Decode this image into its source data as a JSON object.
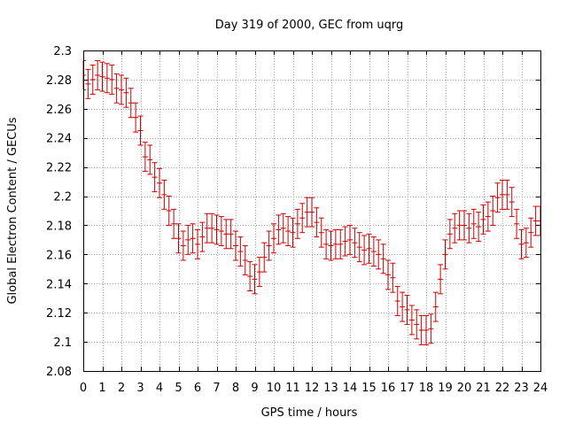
{
  "chart_data": {
    "type": "scatter",
    "title": "Day 319 of 2000, GEC from uqrg",
    "xlabel": "GPS time / hours",
    "ylabel": "Global Electron Content / GECUs",
    "xlim": [
      0,
      24
    ],
    "ylim": [
      2.08,
      2.3
    ],
    "xticks": [
      0,
      1,
      2,
      3,
      4,
      5,
      6,
      7,
      8,
      9,
      10,
      11,
      12,
      13,
      14,
      15,
      16,
      17,
      18,
      19,
      20,
      21,
      22,
      23,
      24
    ],
    "yticks": [
      2.08,
      2.1,
      2.12,
      2.14,
      2.16,
      2.18,
      2.2,
      2.22,
      2.24,
      2.26,
      2.28,
      2.3
    ],
    "grid": true,
    "series_color": "#cc0000",
    "error": 0.01,
    "x": [
      0.0,
      0.25,
      0.5,
      0.75,
      1.0,
      1.25,
      1.5,
      1.75,
      2.0,
      2.25,
      2.5,
      2.75,
      3.0,
      3.25,
      3.5,
      3.75,
      4.0,
      4.25,
      4.5,
      4.75,
      5.0,
      5.25,
      5.5,
      5.75,
      6.0,
      6.25,
      6.5,
      6.75,
      7.0,
      7.25,
      7.5,
      7.75,
      8.0,
      8.25,
      8.5,
      8.75,
      9.0,
      9.25,
      9.5,
      9.75,
      10.0,
      10.25,
      10.5,
      10.75,
      11.0,
      11.25,
      11.5,
      11.75,
      12.0,
      12.25,
      12.5,
      12.75,
      13.0,
      13.25,
      13.5,
      13.75,
      14.0,
      14.25,
      14.5,
      14.75,
      15.0,
      15.25,
      15.5,
      15.75,
      16.0,
      16.25,
      16.5,
      16.75,
      17.0,
      17.25,
      17.5,
      17.75,
      18.0,
      18.25,
      18.5,
      18.75,
      19.0,
      19.25,
      19.5,
      19.75,
      20.0,
      20.25,
      20.5,
      20.75,
      21.0,
      21.25,
      21.5,
      21.75,
      22.0,
      22.25,
      22.5,
      22.75,
      23.0,
      23.25,
      23.5,
      23.75,
      24.0
    ],
    "y": [
      2.283,
      2.277,
      2.28,
      2.283,
      2.282,
      2.281,
      2.28,
      2.274,
      2.273,
      2.271,
      2.264,
      2.254,
      2.245,
      2.227,
      2.225,
      2.213,
      2.209,
      2.201,
      2.19,
      2.181,
      2.171,
      2.166,
      2.17,
      2.171,
      2.167,
      2.172,
      2.178,
      2.178,
      2.177,
      2.176,
      2.174,
      2.174,
      2.166,
      2.162,
      2.156,
      2.145,
      2.143,
      2.148,
      2.158,
      2.166,
      2.171,
      2.177,
      2.178,
      2.176,
      2.175,
      2.181,
      2.185,
      2.189,
      2.189,
      2.182,
      2.175,
      2.167,
      2.166,
      2.167,
      2.167,
      2.169,
      2.17,
      2.168,
      2.165,
      2.163,
      2.164,
      2.162,
      2.16,
      2.157,
      2.146,
      2.144,
      2.128,
      2.124,
      2.122,
      2.115,
      2.112,
      2.108,
      2.108,
      2.109,
      2.124,
      2.143,
      2.16,
      2.174,
      2.178,
      2.18,
      2.18,
      2.178,
      2.181,
      2.179,
      2.184,
      2.186,
      2.19,
      2.199,
      2.201,
      2.201,
      2.196,
      2.181,
      2.167,
      2.168,
      2.175,
      2.183,
      2.183
    ]
  }
}
